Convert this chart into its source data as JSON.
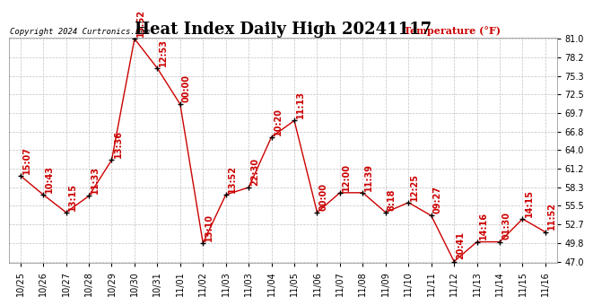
{
  "title": "Heat Index Daily High 20241117",
  "ylabel": "Temperature (°F)",
  "copyright": "Copyright 2024 Curtronics.com",
  "xtick_labels": [
    "10/25",
    "10/26",
    "10/27",
    "10/28",
    "10/29",
    "10/30",
    "10/31",
    "11/01",
    "11/02",
    "11/03",
    "11/03",
    "11/04",
    "11/05",
    "11/06",
    "11/07",
    "11/08",
    "11/09",
    "11/10",
    "11/11",
    "11/12",
    "11/13",
    "11/14",
    "11/15",
    "11/16"
  ],
  "values": [
    60.1,
    57.2,
    54.5,
    57.0,
    62.5,
    81.0,
    76.5,
    71.0,
    49.8,
    57.2,
    58.3,
    66.0,
    68.5,
    54.5,
    57.5,
    57.5,
    54.5,
    56.0,
    54.0,
    47.0,
    50.0,
    50.0,
    53.5,
    51.5
  ],
  "times": [
    "15:07",
    "10:43",
    "13:15",
    "11:33",
    "13:36",
    "13:52",
    "12:53",
    "00:00",
    "13:10",
    "13:52",
    "22:30",
    "10:20",
    "11:13",
    "00:00",
    "12:00",
    "11:39",
    "8:18",
    "12:25",
    "09:27",
    "20:41",
    "14:16",
    "01:30",
    "14:15",
    "11:52"
  ],
  "ylim": [
    47.0,
    81.0
  ],
  "yticks": [
    47.0,
    49.8,
    52.7,
    55.5,
    58.3,
    61.2,
    64.0,
    66.8,
    69.7,
    72.5,
    75.3,
    78.2,
    81.0
  ],
  "line_color": "#cc0000",
  "marker_color": "#000000",
  "label_color": "#cc0000",
  "title_fontsize": 13,
  "tick_fontsize": 7,
  "label_fontsize": 7,
  "bg_color": "#ffffff",
  "grid_color": "#bbbbbb"
}
